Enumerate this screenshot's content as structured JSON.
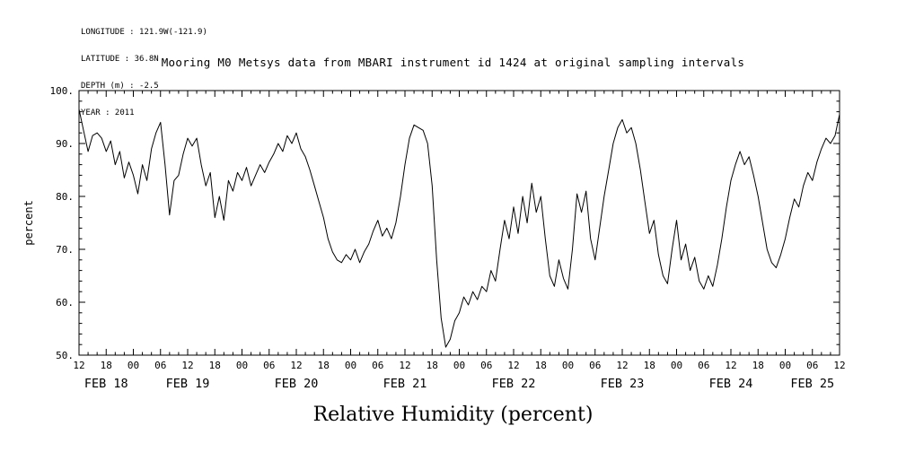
{
  "header": {
    "longitude": "LONGITUDE : 121.9W(-121.9)",
    "latitude": "LATITUDE : 36.8N",
    "depth": "DEPTH (m) : -2.5",
    "year": "YEAR : 2011"
  },
  "title": "Mooring M0 Metsys data from MBARI instrument id 1424 at original sampling intervals",
  "caption": "Relative Humidity (percent)",
  "chart_data": {
    "type": "line",
    "title": "Mooring M0 Metsys data from MBARI instrument id 1424 at original sampling intervals",
    "xlabel": "Relative Humidity (percent)",
    "ylabel": "percent",
    "ylim": [
      50,
      100
    ],
    "yticks": [
      50,
      60,
      70,
      80,
      90,
      100
    ],
    "ytick_labels": [
      "50.",
      "60.",
      "70.",
      "80.",
      "90.",
      "100."
    ],
    "x_start_hour": 0,
    "x_end_hour": 168,
    "xtick_interval_hours": 6,
    "x_minor_tick_hours": 2,
    "y_minor_tick_units": 2,
    "xtick_labels": [
      "12",
      "18",
      "00",
      "06",
      "12",
      "18",
      "00",
      "06",
      "12",
      "18",
      "00",
      "06",
      "12",
      "18",
      "00",
      "06",
      "12",
      "18",
      "00",
      "06",
      "12",
      "18",
      "00",
      "06",
      "12",
      "18",
      "00",
      "06",
      "12"
    ],
    "day_labels": [
      {
        "label": "FEB 18",
        "center_hour": 6
      },
      {
        "label": "FEB 19",
        "center_hour": 24
      },
      {
        "label": "FEB 20",
        "center_hour": 48
      },
      {
        "label": "FEB 21",
        "center_hour": 72
      },
      {
        "label": "FEB 22",
        "center_hour": 96
      },
      {
        "label": "FEB 23",
        "center_hour": 120
      },
      {
        "label": "FEB 24",
        "center_hour": 144
      },
      {
        "label": "FEB 25",
        "center_hour": 162
      }
    ],
    "grid": false,
    "line_color": "#000000",
    "series": [
      {
        "name": "relative_humidity_percent",
        "x_step_hours": 1,
        "values": [
          96.5,
          92.5,
          88.5,
          91.5,
          92,
          91,
          88.5,
          90.5,
          86,
          88.5,
          83.5,
          86.5,
          84,
          80.5,
          86,
          83,
          89,
          92,
          94,
          86,
          76.5,
          83,
          84,
          88,
          91,
          89.5,
          91,
          86,
          82,
          84.5,
          76,
          80,
          75.5,
          83,
          81,
          84.5,
          83,
          85.5,
          82,
          84,
          86,
          84.5,
          86.5,
          88,
          90,
          88.5,
          91.5,
          90,
          92,
          89,
          87.5,
          85,
          82,
          79,
          76,
          72,
          69.5,
          68,
          67.5,
          69,
          68,
          70,
          67.5,
          69.5,
          71,
          73.5,
          75.5,
          72.5,
          74,
          72,
          75,
          80,
          86,
          91,
          93.5,
          93,
          92.5,
          90,
          82,
          68,
          57,
          51.5,
          53,
          56.5,
          58,
          61,
          59.5,
          62,
          60.5,
          63,
          62,
          66,
          64,
          70,
          75.5,
          72,
          78,
          73,
          80,
          75,
          82.5,
          77,
          80,
          72,
          65,
          63,
          68,
          64.5,
          62.5,
          70,
          80.5,
          77,
          81,
          72,
          68,
          74,
          80,
          85,
          90,
          93,
          94.5,
          92,
          93,
          90,
          85,
          79,
          73,
          75.5,
          69,
          65,
          63.5,
          70,
          75.5,
          68,
          71,
          66,
          68.5,
          64,
          62.5,
          65,
          63,
          67,
          72,
          78,
          83,
          86,
          88.5,
          86,
          87.5,
          84,
          80,
          75,
          70,
          67.5,
          66.5,
          69,
          72,
          76,
          79.5,
          78,
          82,
          84.5,
          83,
          86.5,
          89,
          91,
          90,
          91.5,
          95.5
        ]
      }
    ]
  }
}
